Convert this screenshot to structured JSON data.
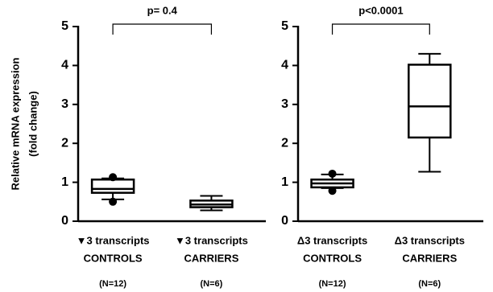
{
  "chart_data": [
    {
      "type": "box",
      "y_label": [
        "Relative mRNA expression",
        "(fold  change)"
      ],
      "annotation": "p= 0.4",
      "categories": [
        [
          "▼3 transcripts",
          "CONTROLS",
          "(N=12)"
        ],
        [
          "▼3 transcripts",
          "CARRIERS",
          "(N=6)"
        ]
      ],
      "boxes": [
        {
          "min": 0.56,
          "q1": 0.73,
          "median": 0.83,
          "q3": 1.07,
          "max": 1.1,
          "outliers": [
            1.13,
            0.5
          ]
        },
        {
          "min": 0.28,
          "q1": 0.36,
          "median": 0.43,
          "q3": 0.53,
          "max": 0.65,
          "outliers": []
        }
      ],
      "color": "#000000",
      "ylim": [
        0,
        5
      ],
      "yticks": [
        0,
        1,
        2,
        3,
        4,
        5
      ]
    },
    {
      "type": "box",
      "annotation": "p<0.0001",
      "categories": [
        [
          "Δ3 transcripts",
          "CONTROLS",
          "(N=12)"
        ],
        [
          "Δ3 transcripts",
          "CARRIERS",
          "(N=6)"
        ]
      ],
      "boxes": [
        {
          "min": 0.85,
          "q1": 0.87,
          "median": 0.97,
          "q3": 1.07,
          "max": 1.2,
          "outliers": [
            1.22,
            0.78
          ]
        },
        {
          "min": 1.27,
          "q1": 2.15,
          "median": 2.95,
          "q3": 4.02,
          "max": 4.3,
          "outliers": []
        }
      ],
      "color": "#000000",
      "ylim": [
        0,
        5
      ],
      "yticks": [
        0,
        1,
        2,
        3,
        4,
        5
      ]
    }
  ]
}
